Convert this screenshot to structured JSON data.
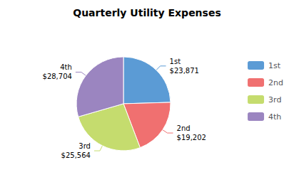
{
  "chart_data": {
    "type": "pie",
    "title": "Quarterly Utility Expenses",
    "categories": [
      "1st",
      "2nd",
      "3rd",
      "4th"
    ],
    "values": [
      23871,
      19202,
      25564,
      28704
    ],
    "value_labels": [
      "$23,871",
      "$19,202",
      "$25,564",
      "$28,704"
    ],
    "colors": [
      "#5B9BD5",
      "#F07070",
      "#C5DC6E",
      "#9B85C0"
    ],
    "data_labels": true,
    "legend": "right"
  }
}
